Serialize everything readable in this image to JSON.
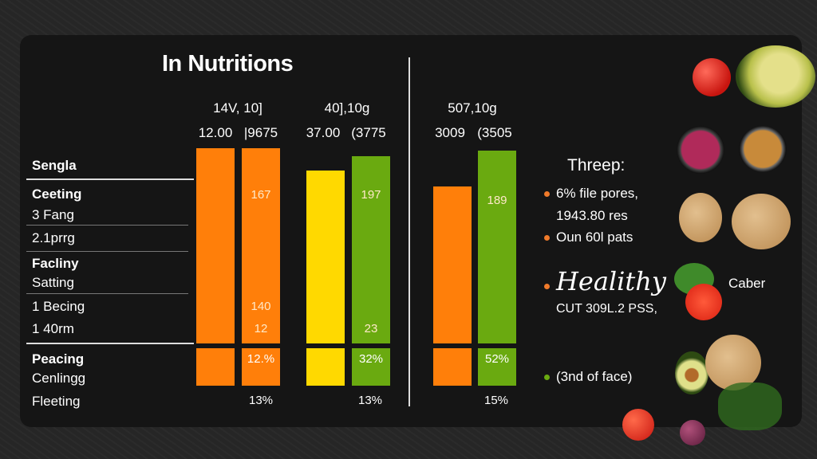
{
  "title": "In Nutritions",
  "groups": [
    {
      "header": "14V, 10]",
      "sub_a": "12.00",
      "sub_b": "|9675"
    },
    {
      "header": "40],10g",
      "sub_a": "37.00",
      "sub_b": "(3775"
    },
    {
      "header": "507,10g",
      "sub_a": "3009",
      "sub_b": "(3505"
    }
  ],
  "rows": [
    "Sengla",
    "Ceeting",
    "3 Fang",
    "2.1prrg",
    "Facliny",
    "Satting",
    "1 Becing",
    "1 40rm",
    "Peacing",
    "Cenlingg",
    "Fleeting"
  ],
  "chart_data": {
    "type": "bar",
    "ylim": [
      0,
      100
    ],
    "grid": false,
    "bars": [
      {
        "group": 0,
        "color": "#ff7f0a",
        "value": 98,
        "labels": [],
        "lower_label": ""
      },
      {
        "group": 0,
        "color": "#ff7f0a",
        "value": 98,
        "labels": [
          "167",
          "140",
          "12"
        ],
        "lower_label": "12.%"
      },
      {
        "group": 1,
        "color": "#ffd900",
        "value": 87,
        "labels": [],
        "lower_label": ""
      },
      {
        "group": 1,
        "color": "#6aaa10",
        "value": 94,
        "labels": [
          "197",
          "23"
        ],
        "lower_label": "32%"
      },
      {
        "group": 2,
        "color": "#ff7f0a",
        "value": 79,
        "labels": [],
        "lower_label": ""
      },
      {
        "group": 2,
        "color": "#6aaa10",
        "value": 97,
        "labels": [
          "189"
        ],
        "lower_label": "52%"
      }
    ],
    "footer_labels": [
      "13%",
      "13%",
      "15%"
    ]
  },
  "side": {
    "heading": "Threep:",
    "items": [
      {
        "text": "6% file pores,",
        "color": "#f07a2a"
      },
      {
        "text": "1943.80 res",
        "color": ""
      },
      {
        "text": "Oun 60l pats",
        "color": "#f07a2a"
      }
    ],
    "script_text": "Healithy",
    "script_color": "#f07a2a",
    "script_sub": "CUT 309L.2 PSS,",
    "caber": "Caber",
    "last": "(3nd of face)",
    "last_color": "#6aaa10"
  }
}
